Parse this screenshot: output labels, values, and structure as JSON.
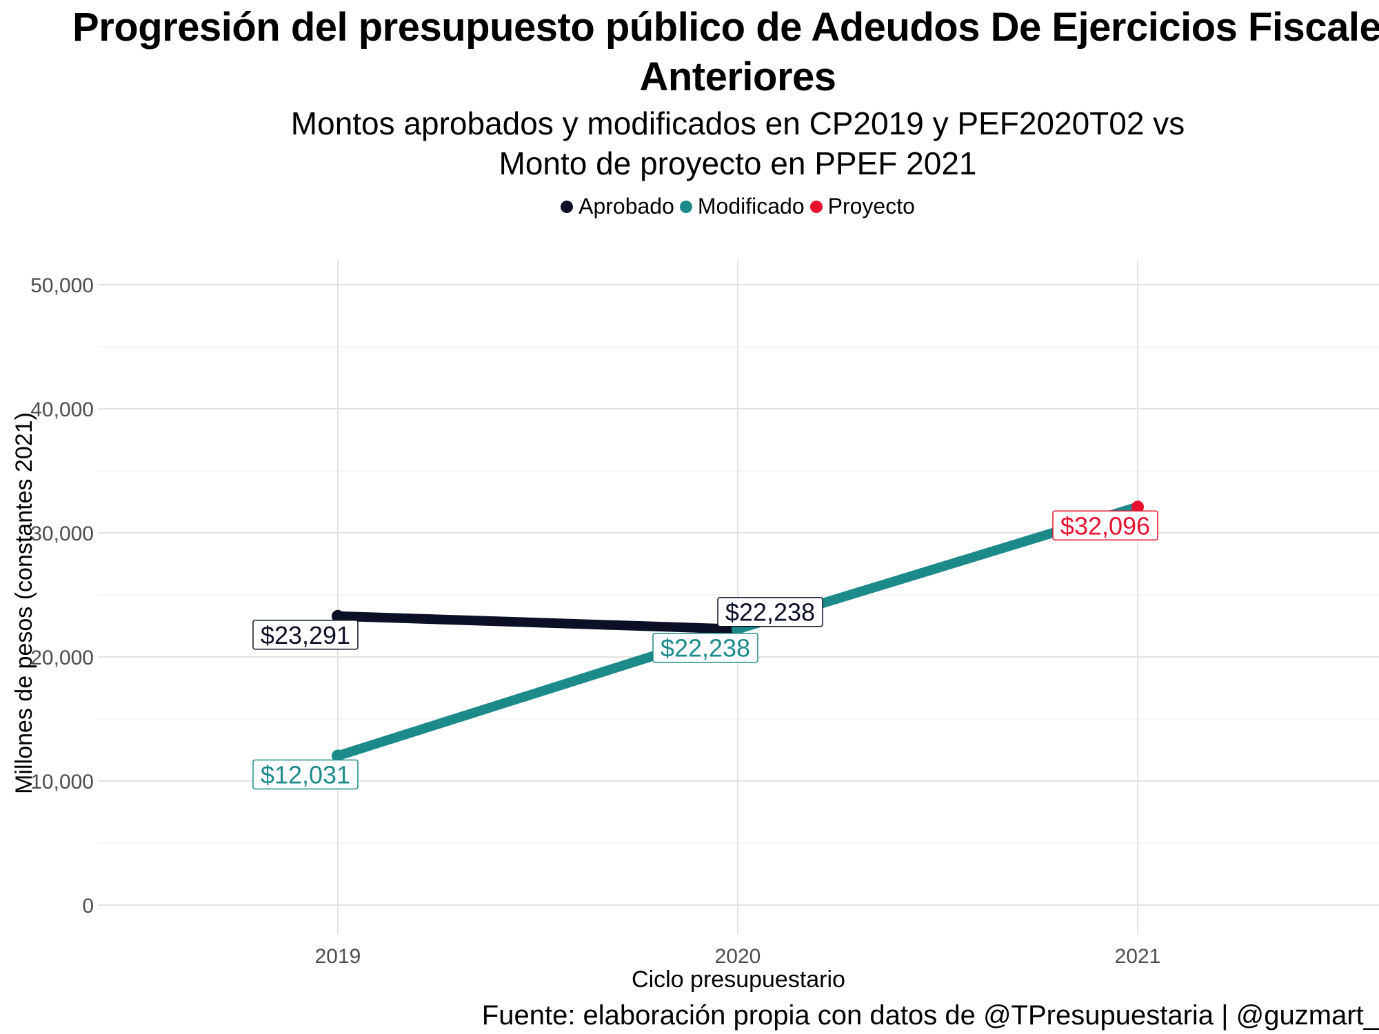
{
  "chart_data": {
    "type": "line",
    "title": "Progresión del presupuesto público de Adeudos De Ejercicios Fiscales Anteriores",
    "subtitle_line1": "Montos aprobados y modificados en CP2019 y PEF2020T02 vs",
    "subtitle_line2": "Monto de proyecto en PPEF 2021",
    "xlabel": "Ciclo presupuestario",
    "ylabel": "Millones de pesos (constantes 2021)",
    "caption": "Fuente: elaboración propia con datos de @TPresupuestaria | @guzmart_",
    "categories": [
      "2019",
      "2020",
      "2021"
    ],
    "ylim": [
      0,
      52000
    ],
    "yticks": [
      0,
      10000,
      20000,
      30000,
      40000,
      50000
    ],
    "ytick_labels": [
      "0",
      "10,000",
      "20,000",
      "30,000",
      "40,000",
      "50,000"
    ],
    "grid": true,
    "legend_position": "top",
    "series": [
      {
        "name": "Aprobado",
        "color": "#0b1026",
        "points": [
          {
            "x": "2019",
            "y": 23291,
            "label": "$23,291"
          },
          {
            "x": "2020",
            "y": 22238,
            "label": "$22,238"
          }
        ]
      },
      {
        "name": "Modificado",
        "color": "#1b8a89",
        "points": [
          {
            "x": "2019",
            "y": 12031,
            "label": "$12,031"
          },
          {
            "x": "2020",
            "y": 22238,
            "label": "$22,238"
          }
        ]
      },
      {
        "name": "Proyecto",
        "color": "#e8112d",
        "points": [
          {
            "x": "2021",
            "y": 32096,
            "label": "$32,096"
          }
        ]
      }
    ],
    "connector": {
      "from": {
        "x": "2020",
        "y": 22238
      },
      "to": {
        "x": "2021",
        "y": 32096
      },
      "color": "#1b8a89"
    }
  }
}
